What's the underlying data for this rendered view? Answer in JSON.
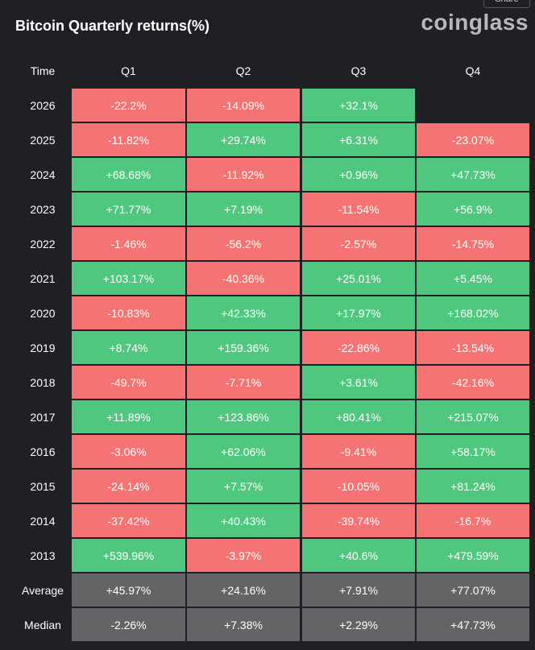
{
  "header": {
    "title": "Bitcoin Quarterly returns(%)",
    "logo": "coinglass",
    "share": "Share"
  },
  "table": {
    "columns": [
      "Time",
      "Q1",
      "Q2",
      "Q3",
      "Q4"
    ],
    "rows": [
      [
        "2026",
        "-22.2%",
        "-14.09%",
        "+32.1%",
        null
      ],
      [
        "2025",
        "-11.82%",
        "+29.74%",
        "+6.31%",
        "-23.07%"
      ],
      [
        "2024",
        "+68.68%",
        "-11.92%",
        "+0.96%",
        "+47.73%"
      ],
      [
        "2023",
        "+71.77%",
        "+7.19%",
        "-11.54%",
        "+56.9%"
      ],
      [
        "2022",
        "-1.46%",
        "-56.2%",
        "-2.57%",
        "-14.75%"
      ],
      [
        "2021",
        "+103.17%",
        "-40.36%",
        "+25.01%",
        "+5.45%"
      ],
      [
        "2020",
        "-10.83%",
        "+42.33%",
        "+17.97%",
        "+168.02%"
      ],
      [
        "2019",
        "+8.74%",
        "+159.36%",
        "-22.86%",
        "-13.54%"
      ],
      [
        "2018",
        "-49.7%",
        "-7.71%",
        "+3.61%",
        "-42.16%"
      ],
      [
        "2017",
        "+11.89%",
        "+123.86%",
        "+80.41%",
        "+215.07%"
      ],
      [
        "2016",
        "-3.06%",
        "+62.06%",
        "-9.41%",
        "+58.17%"
      ],
      [
        "2015",
        "-24.14%",
        "+7.57%",
        "-10.05%",
        "+81.24%"
      ],
      [
        "2014",
        "-37.42%",
        "+40.43%",
        "-39.74%",
        "-16.7%"
      ],
      [
        "2013",
        "+539.96%",
        "-3.97%",
        "+40.6%",
        "+479.59%"
      ]
    ],
    "summary_rows": [
      [
        "Average",
        "+45.97%",
        "+24.16%",
        "+7.91%",
        "+77.07%"
      ],
      [
        "Median",
        "-2.26%",
        "+7.38%",
        "+2.29%",
        "+47.73%"
      ]
    ]
  }
}
